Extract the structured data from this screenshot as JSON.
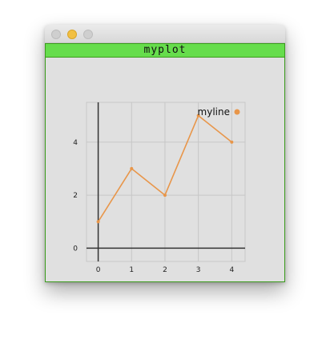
{
  "window": {
    "title_bar_buttons": [
      "close",
      "minimize",
      "maximize"
    ]
  },
  "colors": {
    "title_band": "#66dd4c",
    "frame_border": "#3a9b1c",
    "series_line": "#e8964a",
    "grid": "#c7c7c7",
    "axis": "#333333"
  },
  "chart_data": {
    "type": "line",
    "title": "myplot",
    "x": [
      0,
      1,
      2,
      3,
      4
    ],
    "series": [
      {
        "name": "myline",
        "values": [
          1,
          3,
          2,
          5,
          4
        ]
      }
    ],
    "xlim": [
      -0.35,
      4.4
    ],
    "ylim": [
      -0.5,
      5.5
    ],
    "xticks": [
      "0",
      "1",
      "2",
      "3",
      "4"
    ],
    "yticks": [
      "0",
      "2",
      "4"
    ],
    "xlabel": "",
    "ylabel": "",
    "grid": true,
    "legend": "top-right"
  }
}
